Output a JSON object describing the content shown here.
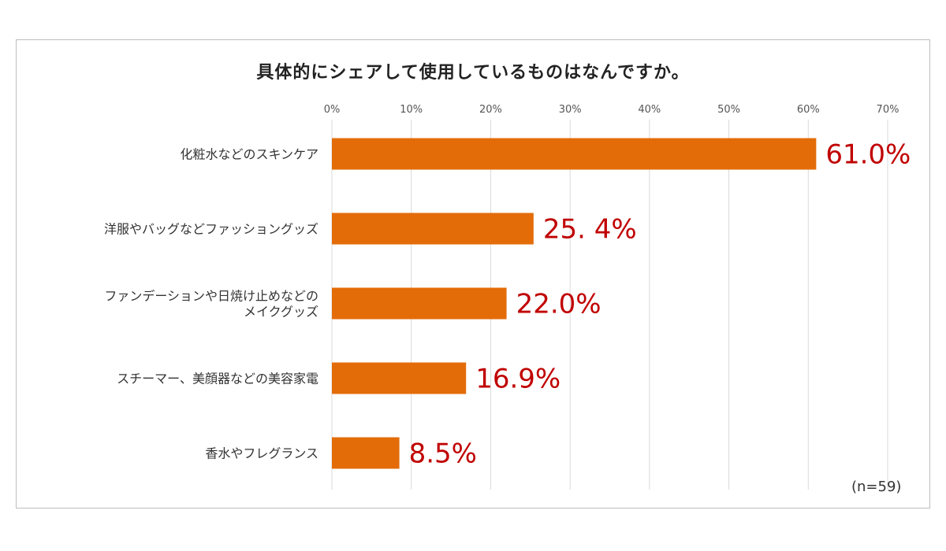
{
  "chart_data": {
    "type": "bar",
    "orientation": "horizontal",
    "title": "具体的にシェアして使用しているものはなんですか。",
    "categories": [
      [
        "化粧水などのスキンケア"
      ],
      [
        "洋服やバッグなどファッショングッズ"
      ],
      [
        "ファンデーションや日焼け止めなどの",
        "メイクグッズ"
      ],
      [
        "スチーマー、美顔器などの美容家電"
      ],
      [
        "香水やフレグランス"
      ]
    ],
    "values": [
      61.0,
      25.4,
      22.0,
      16.9,
      8.5
    ],
    "value_labels": [
      "61.0%",
      "25. 4%",
      "22.0%",
      "16.9%",
      "8.5%"
    ],
    "x_ticks": [
      "0%",
      "10%",
      "20%",
      "30%",
      "40%",
      "50%",
      "60%",
      "70%"
    ],
    "xlim": [
      0,
      70
    ],
    "axis_position": "top",
    "grid": true,
    "bar_color": "#e36c09",
    "label_color": "#c00000",
    "note": "(n=59)"
  }
}
